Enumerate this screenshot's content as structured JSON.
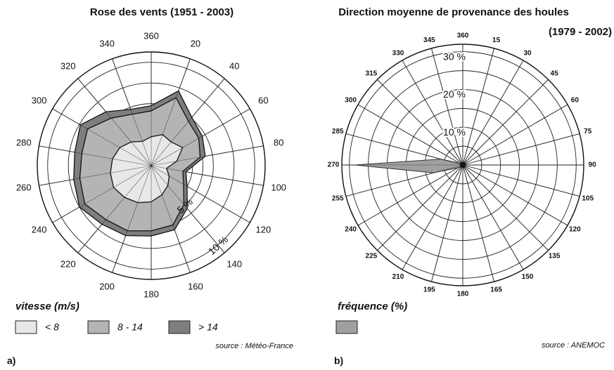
{
  "chart_data": [
    {
      "type": "windrose",
      "title": "Rose des vents (1951 - 2003)",
      "categories": [
        "360",
        "20",
        "40",
        "60",
        "80",
        "100",
        "120",
        "140",
        "160",
        "180",
        "200",
        "220",
        "240",
        "260",
        "280",
        "300",
        "320",
        "340"
      ],
      "series": [
        {
          "name": "< 8",
          "color": "#e8e8e8",
          "values": [
            2.8,
            3.2,
            3.0,
            3.5,
            2.5,
            1.5,
            2.0,
            2.5,
            3.0,
            3.5,
            3.8,
            4.0,
            4.2,
            4.0,
            3.8,
            3.5,
            3.0,
            2.5
          ]
        },
        {
          "name": "8 - 14",
          "color": "#b4b4b4",
          "values": [
            2.5,
            3.8,
            2.6,
            1.8,
            2.3,
            1.6,
            1.6,
            2.4,
            3.1,
            2.8,
            2.9,
            2.8,
            3.2,
            3.0,
            3.0,
            3.6,
            3.0,
            2.8
          ]
        },
        {
          "name": "> 14",
          "color": "#7e7e7e",
          "values": [
            0.5,
            0.7,
            0.5,
            0.4,
            0.5,
            0.3,
            0.4,
            0.5,
            0.5,
            0.5,
            0.5,
            0.6,
            0.6,
            0.6,
            0.7,
            0.8,
            0.8,
            0.5
          ]
        }
      ],
      "rlim": [
        0,
        11
      ],
      "rticks": [
        {
          "value": 5,
          "label": "5 %"
        },
        {
          "value": 10,
          "label": "10 %"
        }
      ],
      "rgrid": [
        2,
        4,
        6,
        8
      ],
      "legend_title": "vitesse (m/s)",
      "source": "source : Météo-France",
      "panel_label": "a)"
    },
    {
      "type": "radar",
      "title": "Direction moyenne de provenance des houles",
      "subtitle": "(1979 - 2002)",
      "categories": [
        "360",
        "15",
        "30",
        "45",
        "60",
        "75",
        "90",
        "105",
        "120",
        "135",
        "150",
        "165",
        "180",
        "195",
        "210",
        "225",
        "240",
        "255",
        "270",
        "285",
        "300",
        "315",
        "330",
        "345"
      ],
      "series": [
        {
          "color": "#a0a0a0",
          "values": [
            0.5,
            0.5,
            0.5,
            0.8,
            0.8,
            0.5,
            0.5,
            0.5,
            0.5,
            0.3,
            0.3,
            0.3,
            0.3,
            0.3,
            0.3,
            0.5,
            1.5,
            8,
            28.5,
            6,
            1,
            0.5,
            0.5,
            0.5
          ]
        }
      ],
      "rlim": [
        0,
        32
      ],
      "rticks": [
        {
          "value": 10,
          "label": "10 %"
        },
        {
          "value": 20,
          "label": "20 %"
        },
        {
          "value": 30,
          "label": "30 %"
        }
      ],
      "rgrid": [
        5,
        15,
        25
      ],
      "legend_title": "fréquence (%)",
      "source": "source : ANEMOC",
      "panel_label": "b)"
    }
  ]
}
